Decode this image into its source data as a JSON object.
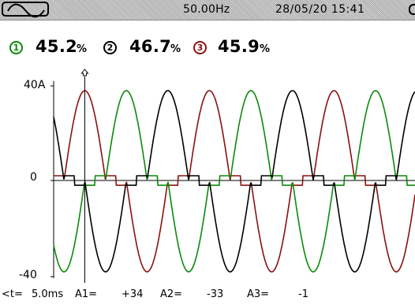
{
  "status_bar": {
    "mode_icon": "sine-wave-icon",
    "frequency": "50.00Hz",
    "datetime": "28/05/20 15:41",
    "battery_icon": "battery-icon"
  },
  "readings": [
    {
      "channel": "1",
      "value": "45.2",
      "unit": "%",
      "color": "#0a8a0a"
    },
    {
      "channel": "2",
      "value": "46.7",
      "unit": "%",
      "color": "#000000"
    },
    {
      "channel": "3",
      "value": "45.9",
      "unit": "%",
      "color": "#8b1111"
    }
  ],
  "chart_data": {
    "type": "line",
    "xlim": [
      0,
      58
    ],
    "ylim": [
      -40,
      40
    ],
    "ylabels": {
      "top": "40A",
      "zero": "0",
      "bottom": "-40"
    },
    "cursor_x": 5.0,
    "cursor_icon": "cursor-arrow-icon",
    "series": [
      {
        "name": "",
        "color": "#8b1111",
        "phase_deg": 0
      },
      {
        "name": "",
        "color": "#0a8a0a",
        "phase_deg": 120
      },
      {
        "name": "",
        "color": "#000000",
        "phase_deg": 240
      }
    ],
    "grid": false
  },
  "readout": {
    "t_label": "<t=",
    "t_value": "5.0ms",
    "a1_label": "A1=",
    "a1_value": "+34",
    "a2_label": "A2=",
    "a2_value": "-33",
    "a3_label": "A3=",
    "a3_value": "-1"
  }
}
